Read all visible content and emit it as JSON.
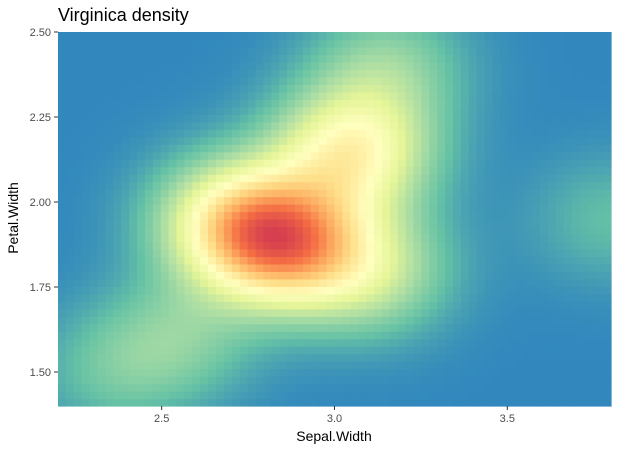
{
  "chart_data": {
    "type": "heatmap",
    "title": "Virginica density",
    "xlabel": "Sepal.Width",
    "ylabel": "Petal.Width",
    "xlim": [
      2.2,
      3.8
    ],
    "ylim": [
      1.4,
      2.5
    ],
    "x_ticks": [
      2.5,
      3.0,
      3.5
    ],
    "y_ticks": [
      1.5,
      1.75,
      2.0,
      2.25,
      2.5
    ],
    "x_tick_labels": [
      "2.5",
      "3.0",
      "3.5"
    ],
    "y_tick_labels": [
      "1.50",
      "1.75",
      "2.00",
      "2.25",
      "2.50"
    ],
    "grid": false,
    "legend": "none",
    "palette": [
      "#3288bd",
      "#66c2a5",
      "#abdda4",
      "#e6f598",
      "#ffffbf",
      "#fee08b",
      "#fdae61",
      "#f46d43",
      "#d53e4f"
    ],
    "density_peaks": [
      {
        "x": 2.85,
        "y": 1.88,
        "weight": 1.0
      },
      {
        "x": 3.05,
        "y": 2.15,
        "weight": 0.75
      },
      {
        "x": 2.7,
        "y": 1.95,
        "weight": 0.6
      },
      {
        "x": 3.1,
        "y": 1.8,
        "weight": 0.45
      },
      {
        "x": 2.55,
        "y": 1.6,
        "weight": 0.25
      },
      {
        "x": 3.15,
        "y": 2.4,
        "weight": 0.3
      },
      {
        "x": 3.8,
        "y": 1.95,
        "weight": 0.18
      },
      {
        "x": 2.35,
        "y": 1.5,
        "weight": 0.18
      }
    ]
  }
}
